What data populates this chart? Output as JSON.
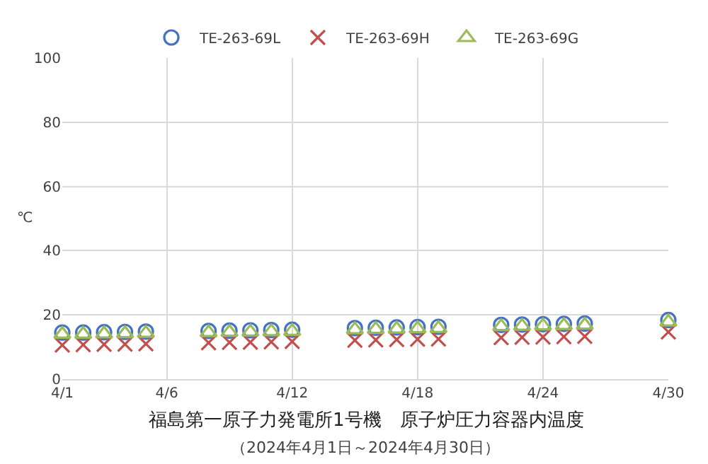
{
  "chart_data": {
    "type": "scatter",
    "title": "福島第一原子力発電所1号機　原子炉圧力容器内温度",
    "subtitle": "（2024年4月1日～2024年4月30日）",
    "ylabel": "℃",
    "x": [
      "2024-04-01",
      "2024-04-02",
      "2024-04-03",
      "2024-04-04",
      "2024-04-05",
      "2024-04-08",
      "2024-04-09",
      "2024-04-10",
      "2024-04-11",
      "2024-04-12",
      "2024-04-15",
      "2024-04-16",
      "2024-04-17",
      "2024-04-18",
      "2024-04-19",
      "2024-04-22",
      "2024-04-23",
      "2024-04-24",
      "2024-04-25",
      "2024-04-26",
      "2024-04-30"
    ],
    "series": [
      {
        "name": "TE-263-69L",
        "color": "#4472c4",
        "marker": "circle",
        "values": [
          14.5,
          14.5,
          14.6,
          14.7,
          14.8,
          15.0,
          15.1,
          15.2,
          15.3,
          15.4,
          15.9,
          16.0,
          16.1,
          16.2,
          16.3,
          16.9,
          17.0,
          17.1,
          17.2,
          17.3,
          18.4
        ]
      },
      {
        "name": "TE-263-69H",
        "color": "#c0504d",
        "marker": "cross",
        "values": [
          10.6,
          10.7,
          10.8,
          10.9,
          11.0,
          11.3,
          11.4,
          11.5,
          11.6,
          11.7,
          12.1,
          12.2,
          12.3,
          12.4,
          12.5,
          12.9,
          13.0,
          13.1,
          13.2,
          13.3,
          14.7
        ]
      },
      {
        "name": "TE-263-69G",
        "color": "#9bbb59",
        "marker": "triangle",
        "values": [
          14.0,
          14.0,
          14.1,
          14.2,
          14.3,
          14.5,
          14.6,
          14.7,
          14.8,
          14.9,
          15.4,
          15.5,
          15.6,
          15.7,
          15.8,
          16.4,
          16.5,
          16.6,
          16.7,
          16.8,
          17.8
        ]
      }
    ],
    "xlim": [
      "2024-04-01",
      "2024-04-30"
    ],
    "xticks": [
      {
        "value": "2024-04-01",
        "label": "4/1"
      },
      {
        "value": "2024-04-06",
        "label": "4/6"
      },
      {
        "value": "2024-04-12",
        "label": "4/12"
      },
      {
        "value": "2024-04-18",
        "label": "4/18"
      },
      {
        "value": "2024-04-24",
        "label": "4/24"
      },
      {
        "value": "2024-04-30",
        "label": "4/30"
      }
    ],
    "ylim": [
      0,
      100
    ],
    "yticks": [
      0,
      20,
      40,
      60,
      80,
      100
    ],
    "grid": true,
    "legend": "top"
  }
}
